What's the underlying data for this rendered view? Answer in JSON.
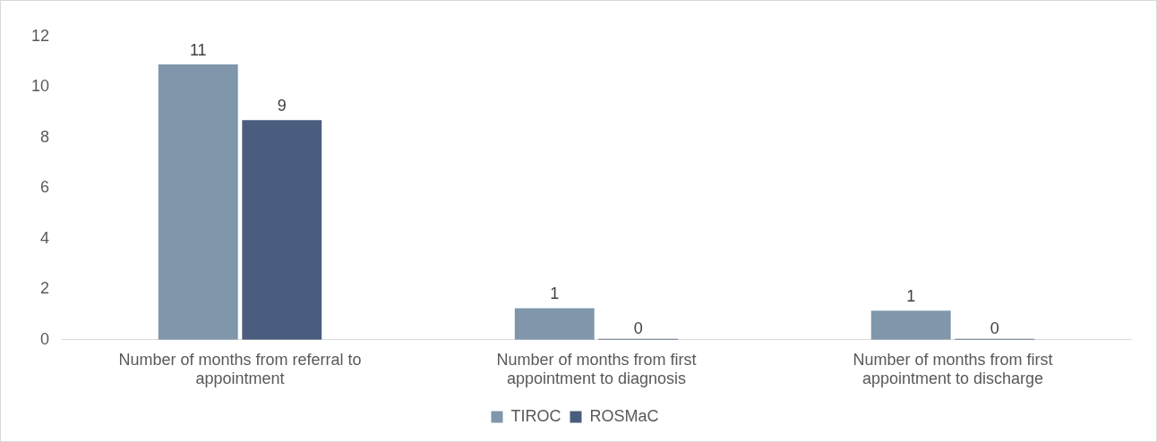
{
  "chart_data": {
    "type": "bar",
    "categories": [
      "Number of months from referral to appointment",
      "Number of months from first appointment to diagnosis",
      "Number of months from first appointment to discharge"
    ],
    "series": [
      {
        "name": "TIROC",
        "color": "#7f96ab",
        "values": [
          10.9,
          1.25,
          1.15
        ],
        "value_labels": [
          "11",
          "1",
          "1"
        ]
      },
      {
        "name": "ROSMaC",
        "color": "#4a5d7e",
        "values": [
          8.7,
          0,
          0
        ],
        "value_labels": [
          "9",
          "0",
          "0"
        ]
      }
    ],
    "ylim": [
      0,
      12
    ],
    "yticks": [
      0,
      2,
      4,
      6,
      8,
      10,
      12
    ],
    "grid": false,
    "legend": "bottom"
  }
}
